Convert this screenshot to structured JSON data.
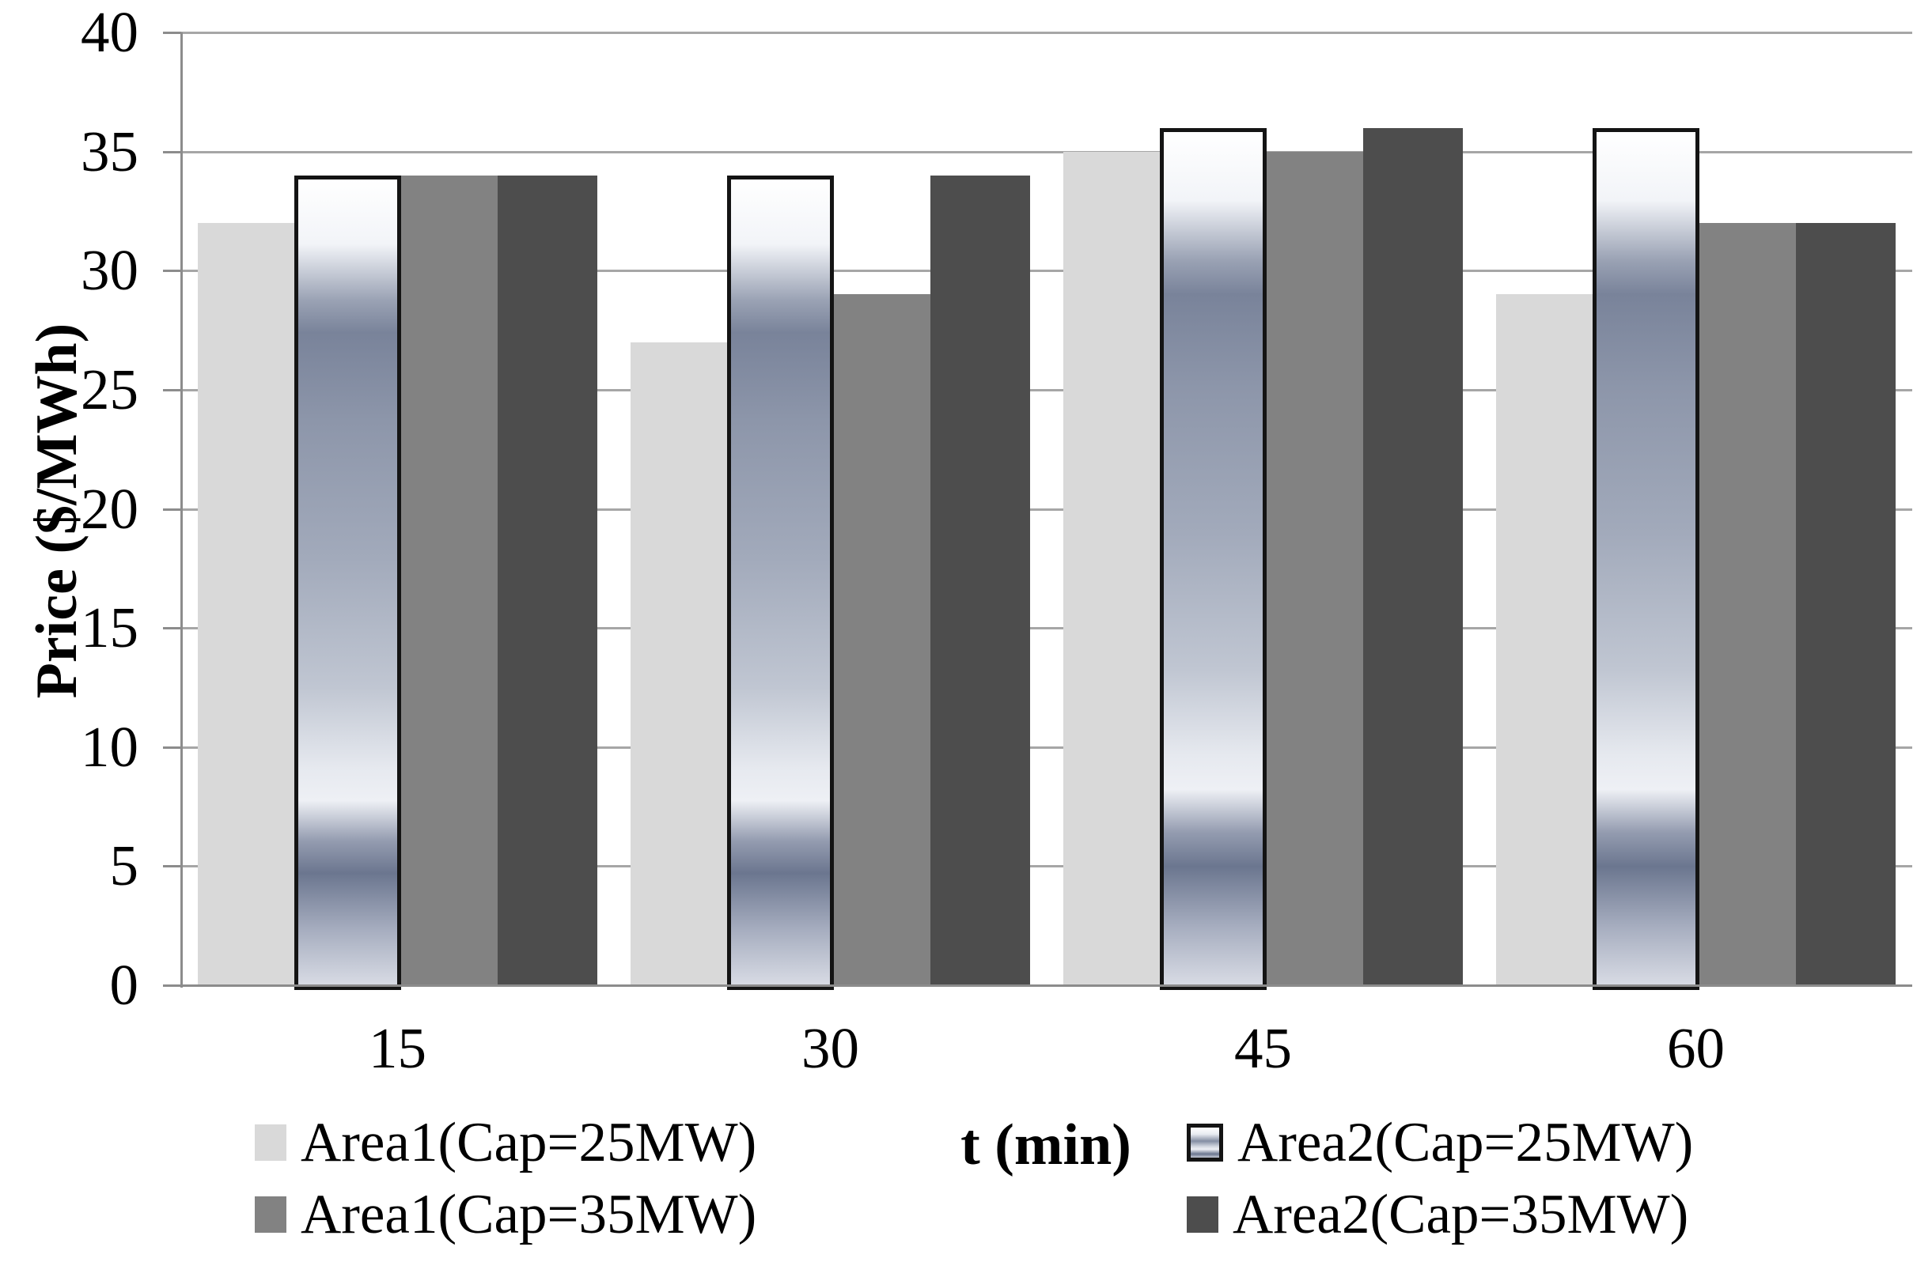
{
  "figure": {
    "background": "#ffffff"
  },
  "chart_data": {
    "type": "bar",
    "title": "",
    "xlabel": "t (min)",
    "ylabel": "Price ($/MWh)",
    "categories": [
      "15",
      "30",
      "45",
      "60"
    ],
    "series": [
      {
        "name": "Area1(Cap=25MW)",
        "values": [
          32,
          27,
          35,
          29
        ],
        "fill": "solid",
        "color": "#d9d9d9"
      },
      {
        "name": "Area2(Cap=25MW)",
        "values": [
          34,
          34,
          36,
          36
        ],
        "fill": "gradient",
        "color": "#a2aabb",
        "border_color": "#141414"
      },
      {
        "name": "Area1(Cap=35MW)",
        "values": [
          34,
          29,
          35,
          32
        ],
        "fill": "solid",
        "color": "#828282"
      },
      {
        "name": "Area2(Cap=35MW)",
        "values": [
          34,
          34,
          36,
          32
        ],
        "fill": "solid",
        "color": "#4d4d4d"
      }
    ],
    "ylim": [
      0,
      40
    ],
    "yticks": [
      0,
      5,
      10,
      15,
      20,
      25,
      30,
      35,
      40
    ],
    "grid": true,
    "gridline_color": "#a6a6a6",
    "axis_color": "#8c8c8c",
    "legend_position": "bottom",
    "legend_columns": {
      "left": [
        "Area1(Cap=25MW)",
        "Area1(Cap=35MW)"
      ],
      "right": [
        "Area2(Cap=25MW)",
        "Area2(Cap=35MW)"
      ]
    }
  }
}
